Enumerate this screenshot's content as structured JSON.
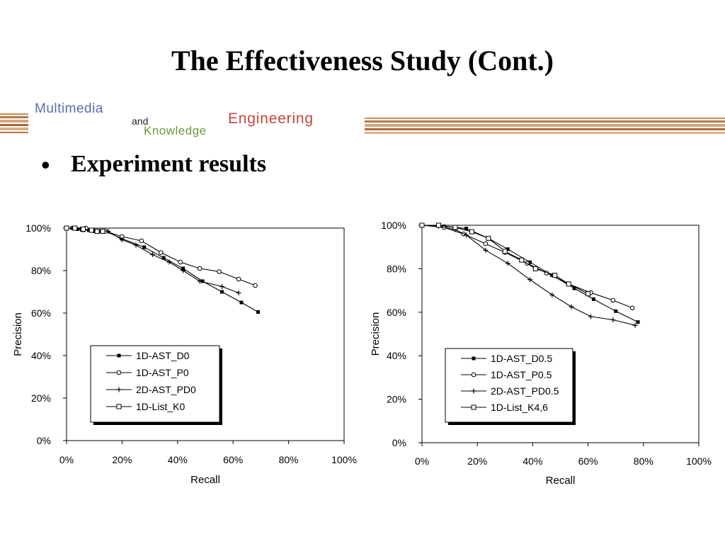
{
  "slide": {
    "title": "The Effectiveness Study (Cont.)",
    "bullet_text": "Experiment results"
  },
  "logo": {
    "line1": "Multimedia",
    "and": "and",
    "engineering": "Engineering",
    "knowledge": "Knowledge",
    "colors": {
      "multimedia": "#5a6cb0",
      "engineering": "#c4463c",
      "knowledge": "#6c9a3c",
      "stripe": "#c98e5a"
    }
  },
  "chart_data": [
    {
      "type": "line",
      "xlabel": "Recall",
      "ylabel": "Precision",
      "xlim": [
        0,
        100
      ],
      "ylim": [
        0,
        100
      ],
      "x_ticks": [
        "0%",
        "20%",
        "40%",
        "60%",
        "80%",
        "100%"
      ],
      "y_ticks": [
        "0%",
        "20%",
        "40%",
        "60%",
        "80%",
        "100%"
      ],
      "legend_position": "bottom-left",
      "series": [
        {
          "name": "1D-AST_D0",
          "marker": "filled-square",
          "x": [
            0,
            2,
            4,
            6,
            8,
            10,
            12,
            14,
            20,
            28,
            35,
            42,
            49,
            56,
            63,
            69
          ],
          "y": [
            100,
            100,
            99.5,
            99,
            99,
            98.5,
            98.5,
            98.5,
            95,
            91,
            86,
            81,
            75,
            70,
            65,
            60.5
          ]
        },
        {
          "name": "1D-AST_P0",
          "marker": "circle",
          "x": [
            0,
            7,
            14,
            20,
            27,
            34,
            41,
            48,
            55,
            62,
            68
          ],
          "y": [
            100,
            100,
            98.5,
            96,
            94,
            88.5,
            84,
            81,
            79.5,
            76,
            73
          ]
        },
        {
          "name": "2D-AST_PD0",
          "marker": "plus",
          "x": [
            0,
            5,
            10,
            15,
            20,
            25,
            31,
            37,
            42,
            48,
            56,
            62
          ],
          "y": [
            100,
            99.5,
            99,
            98.5,
            94.5,
            92,
            87.5,
            84,
            80,
            75,
            72.5,
            69.5
          ]
        },
        {
          "name": "1D-List_K0",
          "marker": "square",
          "x": [
            0,
            3,
            6,
            9,
            11,
            13
          ],
          "y": [
            100,
            100,
            99.5,
            99,
            98.5,
            98.5
          ]
        }
      ]
    },
    {
      "type": "line",
      "xlabel": "Recall",
      "ylabel": "Precision",
      "xlim": [
        0,
        100
      ],
      "ylim": [
        0,
        100
      ],
      "x_ticks": [
        "0%",
        "20%",
        "40%",
        "60%",
        "80%",
        "100%"
      ],
      "y_ticks": [
        "0%",
        "20%",
        "40%",
        "60%",
        "80%",
        "100%"
      ],
      "legend_position": "bottom-left",
      "series": [
        {
          "name": "1D-AST_D0.5",
          "marker": "filled-square",
          "x": [
            0,
            8,
            16,
            24,
            31,
            39,
            47,
            55,
            62,
            70,
            78
          ],
          "y": [
            100,
            99.5,
            98.5,
            94,
            89,
            83,
            77,
            71,
            66,
            60.5,
            55.5
          ]
        },
        {
          "name": "1D-AST_P0.5",
          "marker": "circle",
          "x": [
            0,
            8,
            15,
            23,
            30,
            38,
            45,
            53,
            61,
            69,
            76
          ],
          "y": [
            100,
            99,
            96,
            91.5,
            87.5,
            82.5,
            78,
            73,
            69,
            65.5,
            62
          ]
        },
        {
          "name": "2D-AST_PD0.5",
          "marker": "plus",
          "x": [
            0,
            6,
            12,
            16,
            23,
            31,
            39,
            47,
            54,
            61,
            69,
            77
          ],
          "y": [
            100,
            99.5,
            98,
            95.5,
            88.5,
            82.5,
            75,
            68,
            62.5,
            58,
            56.5,
            54
          ]
        },
        {
          "name": "1D-List_K4,6",
          "marker": "square",
          "x": [
            0,
            6,
            12,
            18,
            24,
            30,
            36,
            41,
            48,
            53,
            60
          ],
          "y": [
            100,
            100,
            99,
            97,
            94,
            88,
            84,
            80,
            77,
            73,
            68.5
          ]
        }
      ]
    }
  ]
}
